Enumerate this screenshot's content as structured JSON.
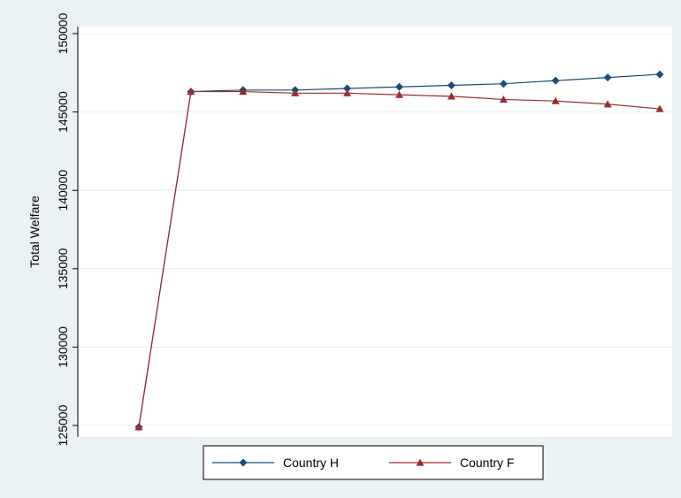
{
  "chart_data": {
    "type": "line",
    "title": "",
    "xlabel": "",
    "ylabel": "Total Welfare",
    "x": [
      0,
      1,
      2,
      3,
      4,
      5,
      6,
      7,
      8,
      9,
      10
    ],
    "ylim": [
      125000,
      150000
    ],
    "yticks": [
      125000,
      130000,
      135000,
      140000,
      145000,
      150000
    ],
    "ytick_labels": [
      "125000",
      "130000",
      "135000",
      "140000",
      "145000",
      "150000"
    ],
    "grid": true,
    "legend_position": "bottom",
    "series": [
      {
        "name": "Country H",
        "color": "#1a4b7a",
        "marker": "diamond",
        "values": [
          124900,
          146300,
          146400,
          146400,
          146500,
          146600,
          146700,
          146800,
          147000,
          147200,
          147400
        ]
      },
      {
        "name": "Country F",
        "color": "#9b2b2f",
        "marker": "triangle",
        "values": [
          124900,
          146300,
          146300,
          146200,
          146200,
          146100,
          146000,
          145800,
          145700,
          145500,
          145200
        ]
      }
    ]
  }
}
